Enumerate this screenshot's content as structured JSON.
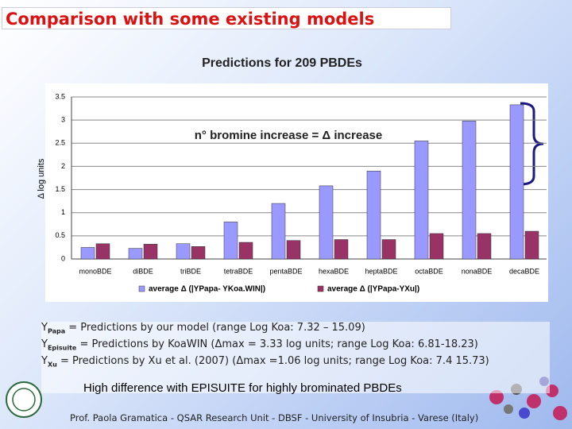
{
  "slide": {
    "header": "Comparison with some existing models",
    "notes": [
      {
        "symbol": "Y",
        "subscript": "Papa",
        "text": " = Predictions by our model (range Log Koa: 7.32 – 15.09)"
      },
      {
        "symbol": "Y",
        "subscript": "Episuite",
        "text": " = Predictions by KoaWIN (Δmax = 3.33 log units; range Log Koa: 6.81-18.23)"
      },
      {
        "symbol": "Y",
        "subscript": "Xu",
        "text": " = Predictions by Xu et al. (2007) (Δmax =1.06 log units; range Log Koa: 7.4 15.73)"
      }
    ],
    "highlight": "High difference with EPISUITE for highly brominated PBDEs",
    "footer": "Prof. Paola Gramatica - QSAR Research Unit - DBSF - University of Insubria - Varese (Italy)"
  },
  "chart_data": {
    "type": "bar",
    "title": "Predictions for 209 PBDEs",
    "annotation": "n° bromine increase = Δ increase",
    "y_label": "Δ log units",
    "categories": [
      "monoBDE",
      "diBDE",
      "triBDE",
      "tetraBDE",
      "pentaBDE",
      "hexaBDE",
      "heptaBDE",
      "octaBDE",
      "nonaBDE",
      "decaBDE"
    ],
    "series": [
      {
        "name": "average Δ (|YPapa- YKoa.WIN|)",
        "color": "#9999ff",
        "values": [
          0.25,
          0.23,
          0.33,
          0.8,
          1.2,
          1.58,
          1.9,
          2.55,
          2.98,
          3.33
        ]
      },
      {
        "name": "average Δ (|YPapa-YXu|)",
        "color": "#993366",
        "values": [
          0.33,
          0.32,
          0.27,
          0.36,
          0.4,
          0.42,
          0.42,
          0.55,
          0.55,
          0.6
        ]
      }
    ],
    "ylim": [
      0,
      3.5
    ],
    "yticks": [
      0,
      0.5,
      1,
      1.5,
      2,
      2.5,
      3,
      3.5
    ],
    "grid": true
  }
}
